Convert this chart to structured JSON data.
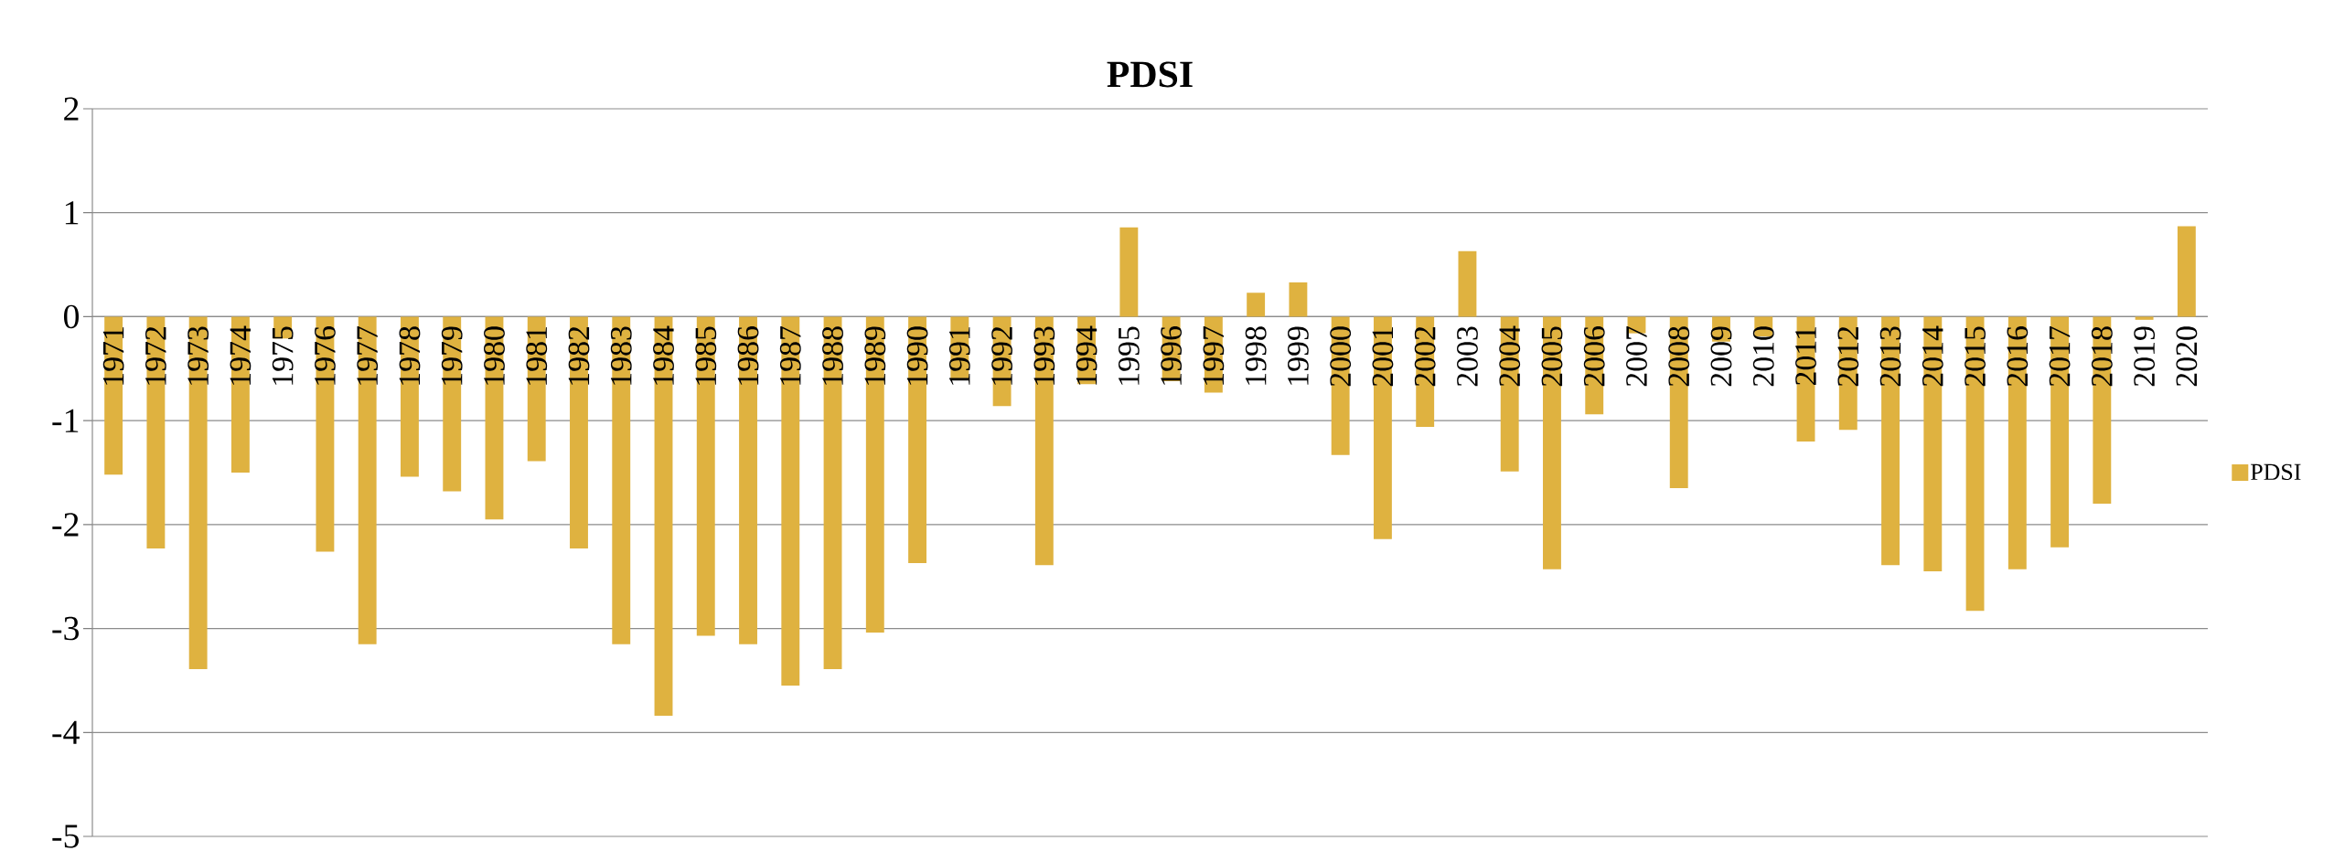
{
  "chart_data": {
    "type": "bar",
    "title": "PDSI",
    "categories": [
      "1971",
      "1972",
      "1973",
      "1974",
      "1975",
      "1976",
      "1977",
      "1978",
      "1979",
      "1980",
      "1981",
      "1982",
      "1983",
      "1984",
      "1985",
      "1986",
      "1987",
      "1988",
      "1989",
      "1990",
      "1991",
      "1992",
      "1993",
      "1994",
      "1995",
      "1996",
      "1997",
      "1998",
      "1999",
      "2000",
      "2001",
      "2002",
      "2003",
      "2004",
      "2005",
      "2006",
      "2007",
      "2008",
      "2009",
      "2010",
      "2011",
      "2012",
      "2013",
      "2014",
      "2015",
      "2016",
      "2017",
      "2018",
      "2019",
      "2020"
    ],
    "series": [
      {
        "name": "PDSI",
        "color": "#dfb240",
        "values": [
          -1.52,
          -2.23,
          -3.39,
          -1.5,
          -0.21,
          -2.26,
          -3.15,
          -1.54,
          -1.68,
          -1.95,
          -1.39,
          -2.23,
          -3.15,
          -3.84,
          -3.07,
          -3.15,
          -3.55,
          -3.39,
          -3.04,
          -2.37,
          -0.61,
          -0.86,
          -2.39,
          -0.65,
          0.86,
          -0.62,
          -0.73,
          0.23,
          0.33,
          -1.33,
          -2.14,
          -1.06,
          0.63,
          -1.49,
          -2.43,
          -0.94,
          -0.16,
          -1.65,
          -0.24,
          -0.19,
          -1.2,
          -1.09,
          -2.39,
          -2.45,
          -2.83,
          -2.43,
          -2.22,
          -1.8,
          -0.03,
          0.87
        ]
      }
    ],
    "ylim": [
      -5,
      2
    ],
    "yticks": [
      -5,
      -4,
      -3,
      -2,
      -1,
      0,
      1,
      2
    ],
    "grid": "y",
    "legend": "right"
  }
}
